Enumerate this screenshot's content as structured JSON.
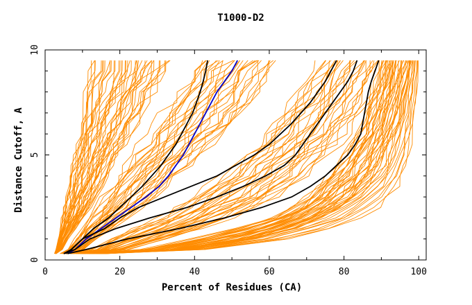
{
  "chart_data": {
    "type": "line",
    "title": "T1000-D2",
    "xlabel": "Percent of Residues (CA)",
    "ylabel": "Distance Cutoff, A",
    "xlim": [
      0,
      102
    ],
    "ylim": [
      0,
      10
    ],
    "x_ticks": [
      0,
      20,
      40,
      60,
      80,
      100
    ],
    "y_ticks": [
      0,
      5,
      10
    ],
    "x_tick_labels": [
      "0",
      "20",
      "40",
      "60",
      "80",
      "100"
    ],
    "y_tick_labels": [
      "0",
      "5",
      "10"
    ],
    "grid": false,
    "legend": "none",
    "colors": {
      "background_curves": "#ff8c00",
      "highlight_black": "#000000",
      "highlight_blue": "#0000cc"
    },
    "y_grid": [
      0.3,
      0.5,
      1,
      1.5,
      2,
      2.5,
      3,
      3.5,
      4,
      4.5,
      5,
      5.5,
      6,
      6.5,
      7,
      7.5,
      8,
      8.5,
      9,
      9.5
    ],
    "background_bands": [
      {
        "count": 40,
        "low": [
          2.5,
          3,
          3.5,
          4,
          4.5,
          5,
          5.5,
          6,
          6.5,
          7,
          7.5,
          8,
          8.5,
          9,
          9.5,
          10,
          10.5,
          11,
          11.5,
          12
        ],
        "high": [
          3,
          4.5,
          6,
          8,
          10,
          12,
          13.5,
          15,
          16.5,
          18,
          19.5,
          21,
          22.5,
          24,
          25.5,
          27,
          28.5,
          30,
          31.5,
          33
        ]
      },
      {
        "count": 30,
        "low": [
          4,
          6,
          8,
          10,
          12,
          14,
          16,
          18,
          20,
          22,
          24,
          26,
          28,
          30,
          32,
          34,
          36,
          38,
          40,
          42
        ],
        "high": [
          6,
          10,
          14,
          18,
          22,
          26,
          29,
          32,
          35,
          38,
          41,
          44,
          47,
          50,
          52,
          54,
          56,
          58,
          60,
          62
        ]
      },
      {
        "count": 30,
        "low": [
          6,
          12,
          18,
          24,
          30,
          35,
          40,
          44,
          48,
          51,
          54,
          57,
          60,
          62,
          64,
          66,
          68,
          70,
          72,
          74
        ],
        "high": [
          10,
          22,
          32,
          42,
          50,
          56,
          61,
          65,
          69,
          72,
          75,
          78,
          80,
          82,
          84,
          86,
          87,
          88,
          89,
          90
        ]
      },
      {
        "count": 35,
        "low": [
          10,
          26,
          40,
          52,
          60,
          66,
          70,
          73,
          76,
          78,
          80,
          82,
          84,
          85,
          86,
          87,
          88,
          89,
          89.5,
          90
        ],
        "high": [
          16,
          40,
          56,
          66,
          74,
          79,
          83,
          86,
          88,
          90,
          91,
          92,
          93,
          94,
          95,
          95.5,
          96,
          96.5,
          97,
          97.5
        ]
      },
      {
        "count": 12,
        "low": [
          12,
          34,
          52,
          64,
          72,
          78,
          82,
          85,
          88,
          90,
          91,
          92,
          93,
          94,
          95,
          95.5,
          96,
          96.5,
          97,
          97.5
        ],
        "high": [
          16,
          44,
          64,
          76,
          84,
          89,
          92,
          94,
          95.5,
          96.5,
          97.2,
          97.8,
          98.2,
          98.6,
          99,
          99.2,
          99.4,
          99.6,
          99.8,
          100
        ]
      }
    ],
    "highlight_series": [
      {
        "color": "#000000",
        "x": [
          5.5,
          7,
          10,
          13,
          17,
          20,
          23,
          26,
          28.5,
          31,
          33,
          35,
          36.5,
          38,
          39.5,
          40.5,
          41.5,
          42.3,
          43,
          43.5
        ]
      },
      {
        "color": "#0000cc",
        "x": [
          6,
          8,
          11,
          15,
          19,
          23,
          27,
          30.5,
          33,
          35,
          37,
          38.5,
          40,
          41.5,
          43,
          44.5,
          46,
          48,
          50,
          51.5
        ]
      },
      {
        "color": "#000000",
        "x": [
          5,
          7,
          10,
          16,
          20,
          25,
          32,
          39,
          46,
          51,
          56,
          60,
          63,
          66,
          68.5,
          71,
          73,
          75,
          76.5,
          78
        ]
      },
      {
        "color": "#000000",
        "x": [
          5,
          8,
          12,
          19,
          28,
          38,
          46,
          53,
          59,
          64,
          67,
          69,
          71,
          73,
          75,
          77,
          79,
          81,
          82.5,
          83.5
        ]
      },
      {
        "color": "#000000",
        "x": [
          6,
          11,
          22,
          36,
          48,
          58,
          66,
          71,
          75,
          78,
          81,
          83,
          84.5,
          85,
          85.5,
          86,
          86.5,
          87.3,
          88.3,
          89.3
        ]
      }
    ]
  }
}
